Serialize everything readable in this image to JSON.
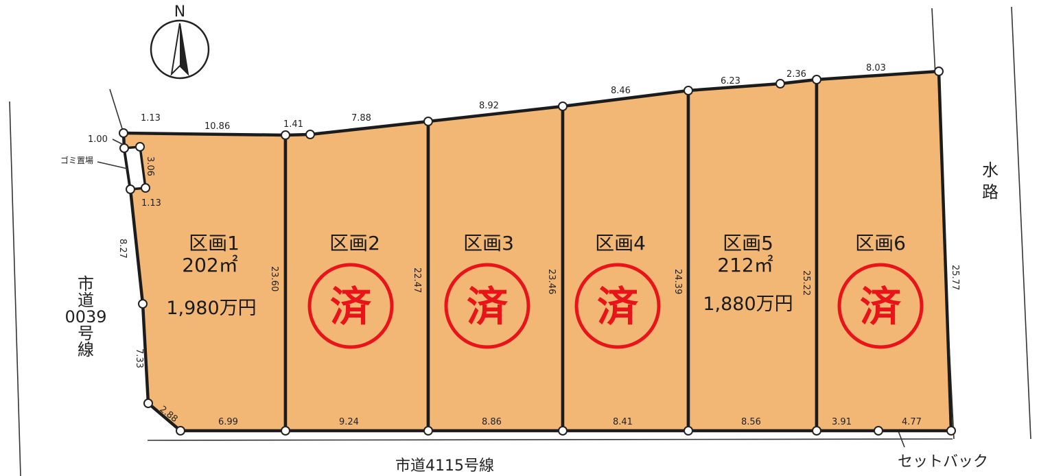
{
  "compass": {
    "label": "N",
    "icon": "north-arrow-icon"
  },
  "roads": {
    "west": [
      "市",
      "道",
      "0039",
      "号",
      "線"
    ],
    "south": "市道4115号線",
    "east_water": [
      "水",
      "路"
    ],
    "setback": "セットバック"
  },
  "garbage_area": "ゴミ置場",
  "colors": {
    "lot": "#f2b774",
    "sold": "#e8141a",
    "line": "#1c1c1c"
  },
  "sold_mark": "済",
  "lots": [
    {
      "name": "区画1",
      "area": "202㎡",
      "price": "1,980万円",
      "sold": false
    },
    {
      "name": "区画2",
      "area": "",
      "price": "",
      "sold": true
    },
    {
      "name": "区画3",
      "area": "",
      "price": "",
      "sold": true
    },
    {
      "name": "区画4",
      "area": "",
      "price": "",
      "sold": true
    },
    {
      "name": "区画5",
      "area": "212㎡",
      "price": "1,880万円",
      "sold": false
    },
    {
      "name": "区画6",
      "area": "",
      "price": "",
      "sold": true
    }
  ],
  "dimensions": {
    "north": [
      "10.86",
      "1.41",
      "7.88",
      "8.92",
      "8.46",
      "6.23",
      "2.36",
      "8.03"
    ],
    "south": [
      "2.88",
      "6.99",
      "9.24",
      "8.86",
      "8.41",
      "8.56",
      "3.91",
      "4.77"
    ],
    "west": [
      "8.27",
      "7.33"
    ],
    "garbage": [
      "1.00",
      "1.13",
      "3.06",
      "1.13"
    ],
    "dividers": [
      "23.60",
      "22.47",
      "23.46",
      "24.39",
      "25.22"
    ],
    "east": "25.77"
  }
}
